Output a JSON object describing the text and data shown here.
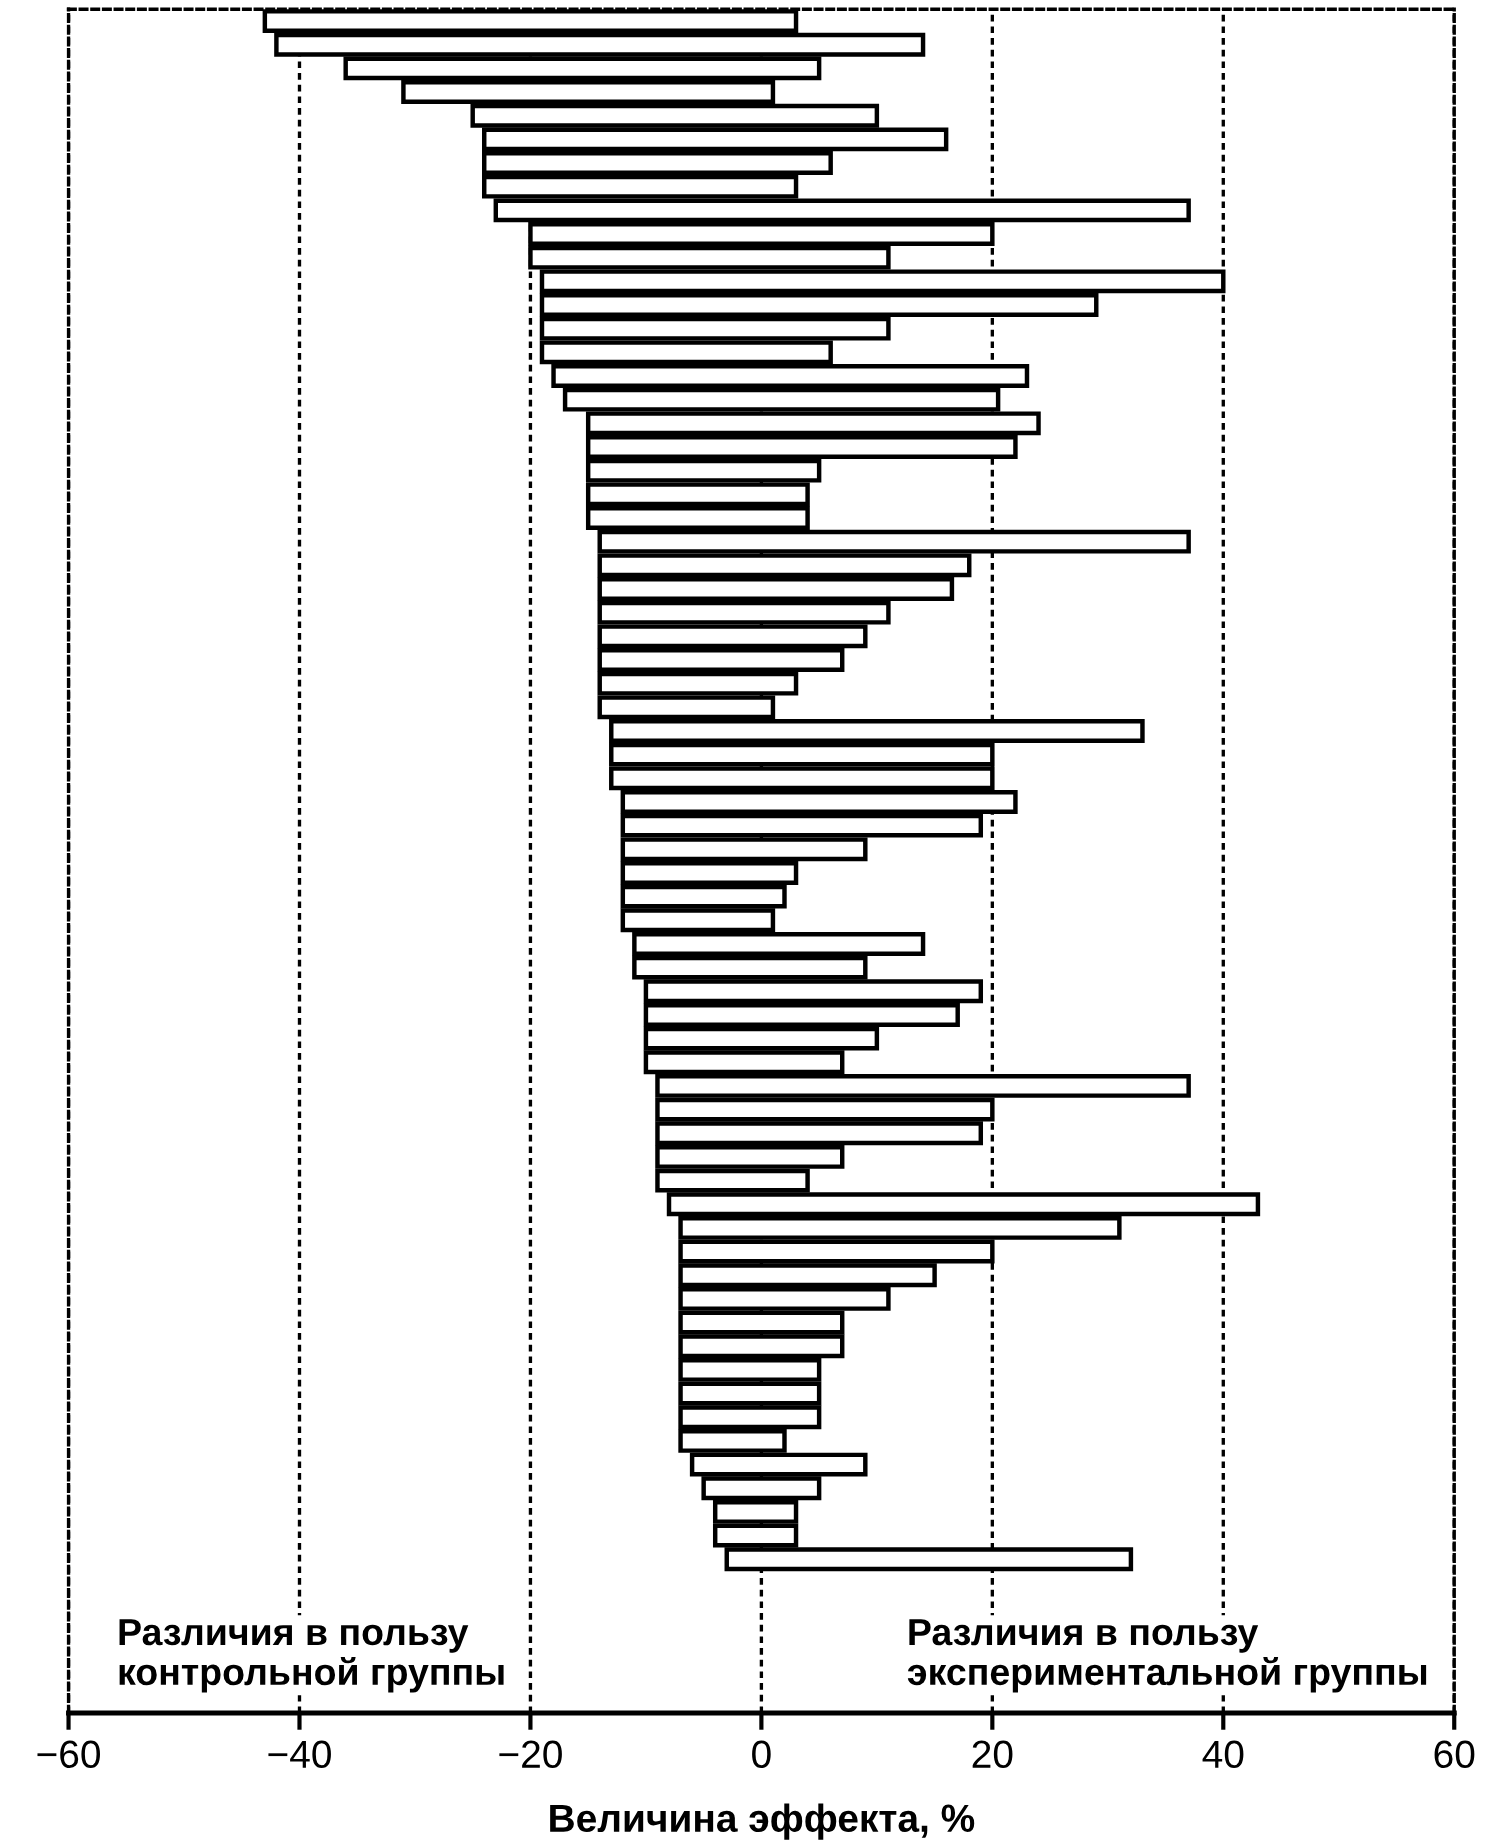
{
  "chart_data": {
    "type": "bar",
    "orientation": "horizontal",
    "xlabel": "Величина эффекта, %",
    "annotations": [
      "Различия в пользу\nконтрольной группы",
      "Различия в пользу\nэкспериментальной группы"
    ],
    "categories": [
      null,
      null,
      null,
      null,
      null,
      null,
      null,
      null,
      null,
      null,
      null,
      null,
      null,
      null,
      null,
      null,
      null,
      null,
      null,
      null,
      null,
      null,
      null,
      null,
      null,
      null,
      null,
      null,
      null,
      null,
      null,
      null,
      null,
      null,
      null,
      null,
      null,
      null,
      null,
      null,
      null,
      null,
      null,
      null,
      null,
      null,
      null,
      null,
      null,
      null,
      null,
      null,
      null,
      null,
      null,
      null,
      null,
      null,
      null,
      null,
      null,
      null,
      null,
      null,
      null,
      null
    ],
    "base": [
      -43,
      -42,
      -36,
      -31,
      -25,
      -24,
      -24,
      -24,
      -23,
      -20,
      -20,
      -19,
      -19,
      -19,
      -19,
      -18,
      -17,
      -15,
      -15,
      -15,
      -15,
      -15,
      -14,
      -14,
      -14,
      -14,
      -14,
      -14,
      -14,
      -14,
      -13,
      -13,
      -13,
      -12,
      -12,
      -12,
      -12,
      -12,
      -12,
      -11,
      -11,
      -10,
      -10,
      -10,
      -10,
      -9,
      -9,
      -9,
      -9,
      -9,
      -8,
      -7,
      -7,
      -7,
      -7,
      -7,
      -7,
      -7,
      -7,
      -7,
      -7,
      -6,
      -5,
      -4,
      -4,
      -3
    ],
    "values": [
      46,
      56,
      41,
      32,
      35,
      40,
      30,
      27,
      60,
      40,
      31,
      59,
      48,
      30,
      25,
      41,
      37.5,
      39,
      37,
      20,
      19,
      19,
      51,
      32,
      30.5,
      25,
      23,
      21,
      17,
      15,
      46,
      33,
      33,
      34,
      31,
      21,
      15,
      14,
      13,
      25,
      20,
      29,
      27,
      20,
      17,
      46,
      29,
      28,
      16,
      13,
      51,
      38,
      27,
      22,
      18,
      14,
      14,
      12,
      12,
      12,
      9,
      15,
      10,
      7,
      7,
      35
    ],
    "color": "#ffffff",
    "xlim": [
      -60,
      60
    ],
    "xticks": [
      {
        "value": -60,
        "label": "−60"
      },
      {
        "value": -40,
        "label": "−40"
      },
      {
        "value": -20,
        "label": "−20"
      },
      0,
      20,
      40,
      60
    ],
    "grid": "x",
    "legend": false
  }
}
